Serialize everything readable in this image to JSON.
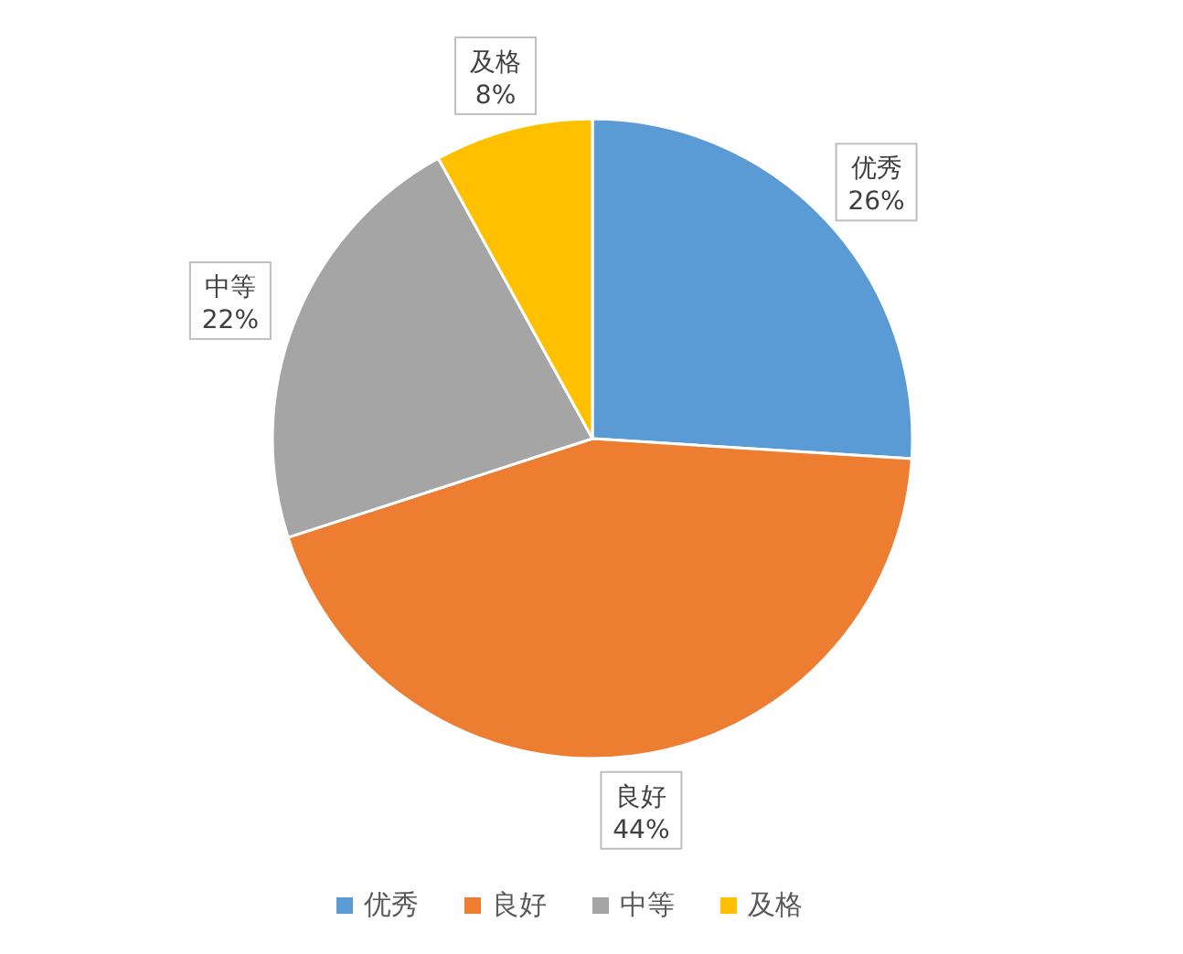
{
  "chart_data": {
    "type": "pie",
    "categories": [
      "优秀",
      "良好",
      "中等",
      "及格"
    ],
    "values": [
      26,
      44,
      22,
      8
    ],
    "value_labels": [
      "26%",
      "44%",
      "22%",
      "8%"
    ],
    "colors": [
      "#5b9bd5",
      "#ed7d31",
      "#a5a5a5",
      "#ffc000"
    ],
    "legend": "bottom"
  }
}
